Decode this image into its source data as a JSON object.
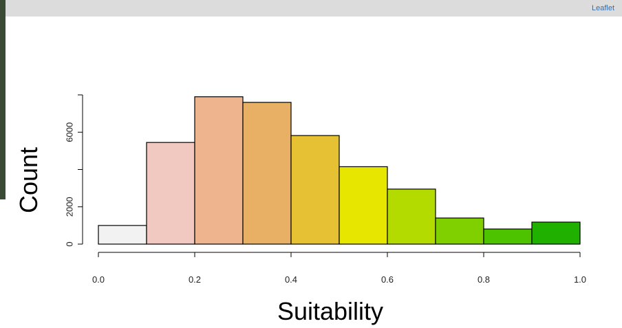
{
  "map_attribution": "Leaflet",
  "chart_data": {
    "type": "histogram",
    "bins": [
      0,
      0.1,
      0.2,
      0.3,
      0.4,
      0.5,
      0.6,
      0.7,
      0.8,
      0.9,
      1.0
    ],
    "values": [
      1000,
      5450,
      7900,
      7600,
      5820,
      4150,
      2950,
      1400,
      810,
      1180
    ],
    "colors": [
      "#f2f2f2",
      "#f1c9c1",
      "#edb48e",
      "#e8b064",
      "#e6c134",
      "#e6e600",
      "#b3db00",
      "#80d000",
      "#4dc300",
      "#20b000"
    ],
    "xlabel": "Suitability",
    "ylabel": "Count",
    "xlim": [
      0,
      1
    ],
    "ylim": [
      0,
      8000
    ],
    "xticks": [
      {
        "value": 0,
        "label": "0.0"
      },
      0.2,
      0.4,
      0.6,
      0.8,
      {
        "value": 1,
        "label": "1.0"
      }
    ],
    "yticks": [
      0,
      2000,
      {
        "value": 4000,
        "label": null
      },
      6000,
      {
        "value": 8000,
        "label": null
      }
    ]
  }
}
